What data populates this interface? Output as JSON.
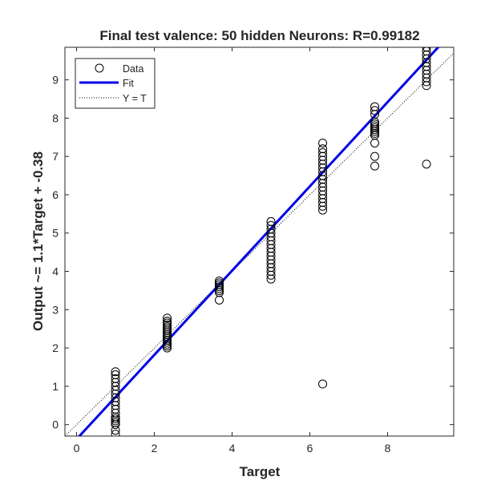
{
  "chart_data": {
    "type": "scatter",
    "title": "Final test valence: 50 hidden Neurons: R=0.99182",
    "xlabel": "Target",
    "ylabel": "Output ~= 1.1*Target + -0.38",
    "xlim": [
      -0.3,
      9.7
    ],
    "ylim": [
      -0.3,
      9.85
    ],
    "xticks": [
      0,
      2,
      4,
      6,
      8
    ],
    "yticks": [
      0,
      1,
      2,
      3,
      4,
      5,
      6,
      7,
      8,
      9
    ],
    "legend": {
      "position": "top-left",
      "entries": [
        {
          "label": "Data",
          "style": "marker",
          "color": "#000000"
        },
        {
          "label": "Fit",
          "style": "line",
          "color": "#0000e6"
        },
        {
          "label": "Y = T",
          "style": "dotted",
          "color": "#000000"
        }
      ]
    },
    "fit": {
      "slope": 1.1,
      "intercept": -0.38,
      "color": "#0000e6"
    },
    "identity_line": {
      "slope": 1,
      "intercept": 0,
      "color": "#000000"
    },
    "series": [
      {
        "name": "Data",
        "points": [
          {
            "x": 1.0,
            "values": [
              -0.25,
              -0.15,
              0.0,
              0.05,
              0.1,
              0.15,
              0.2,
              0.3,
              0.4,
              0.5,
              0.6,
              0.7,
              0.8,
              0.9,
              1.0,
              1.1,
              1.2,
              1.3,
              1.38
            ]
          },
          {
            "x": 2.33,
            "values": [
              2.0,
              2.05,
              2.1,
              2.15,
              2.2,
              2.25,
              2.3,
              2.35,
              2.4,
              2.45,
              2.5,
              2.55,
              2.6,
              2.65,
              2.7,
              2.78
            ]
          },
          {
            "x": 3.67,
            "values": [
              3.25,
              3.45,
              3.5,
              3.55,
              3.6,
              3.65,
              3.7,
              3.75
            ]
          },
          {
            "x": 5.0,
            "values": [
              3.8,
              3.9,
              4.0,
              4.1,
              4.2,
              4.3,
              4.4,
              4.5,
              4.6,
              4.7,
              4.8,
              4.9,
              5.0,
              5.1,
              5.2,
              5.3
            ]
          },
          {
            "x": 6.33,
            "values": [
              1.06,
              5.6,
              5.7,
              5.8,
              5.9,
              6.0,
              6.1,
              6.2,
              6.3,
              6.4,
              6.5,
              6.6,
              6.7,
              6.8,
              6.9,
              7.0,
              7.1,
              7.2,
              7.35
            ]
          },
          {
            "x": 7.67,
            "values": [
              6.75,
              7.0,
              7.35,
              7.55,
              7.6,
              7.65,
              7.7,
              7.75,
              7.8,
              7.85,
              7.9,
              8.1,
              8.2,
              8.3
            ]
          },
          {
            "x": 9.0,
            "values": [
              6.8,
              8.85,
              8.95,
              9.05,
              9.15,
              9.25,
              9.35,
              9.45,
              9.55,
              9.65,
              9.75,
              9.85
            ]
          }
        ]
      }
    ]
  }
}
